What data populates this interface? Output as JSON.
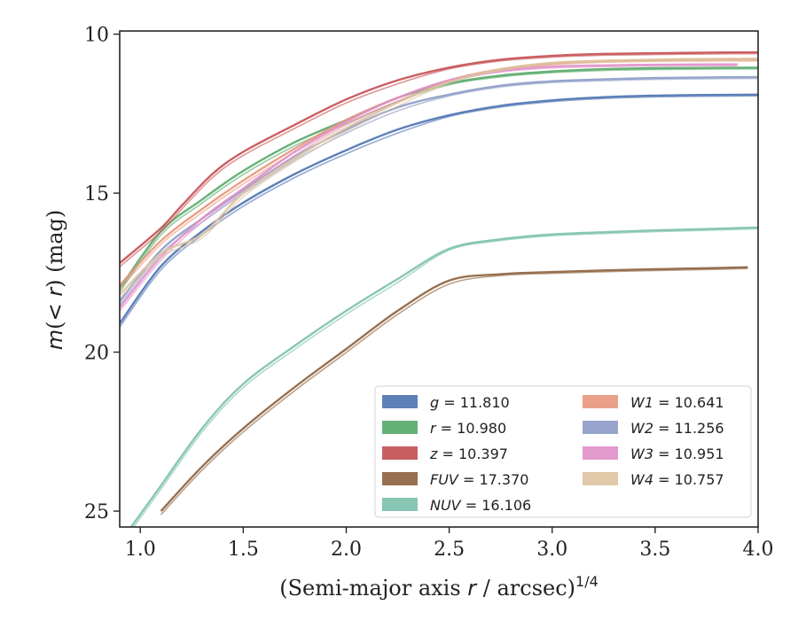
{
  "chart_data": {
    "type": "line",
    "xlabel": "(Semi-major axis r / arcsec)",
    "xlabel_parts": {
      "prefix": "(Semi-major axis ",
      "var": "r",
      "suffix": " / arcsec)",
      "sup": "1/4"
    },
    "ylabel": "m(< r) (mag)",
    "ylabel_parts": {
      "m": "m",
      "open": "(",
      "lt": "< ",
      "r": "r",
      "close": ")",
      "unit": " (mag)"
    },
    "xlim": [
      0.9,
      4.0
    ],
    "ylim": [
      25.5,
      9.9
    ],
    "y_inverted": true,
    "xticks": [
      1.0,
      1.5,
      2.0,
      2.5,
      3.0,
      3.5,
      4.0
    ],
    "xtick_labels": [
      "1.0",
      "1.5",
      "2.0",
      "2.5",
      "3.0",
      "3.5",
      "4.0"
    ],
    "yticks": [
      10,
      15,
      20,
      25
    ],
    "ytick_labels": [
      "10",
      "15",
      "20",
      "25"
    ],
    "grid": false,
    "legend_position": "lower-right",
    "series": [
      {
        "name": "g",
        "label": "g = 11.810",
        "color": "#4C72B0",
        "points": [
          [
            0.9,
            19.1
          ],
          [
            1.1,
            17.3
          ],
          [
            1.3,
            16.2
          ],
          [
            1.5,
            15.3
          ],
          [
            1.75,
            14.4
          ],
          [
            2.0,
            13.65
          ],
          [
            2.25,
            13.0
          ],
          [
            2.5,
            12.55
          ],
          [
            2.75,
            12.25
          ],
          [
            3.0,
            12.08
          ],
          [
            3.25,
            11.98
          ],
          [
            3.5,
            11.93
          ],
          [
            3.75,
            11.91
          ],
          [
            4.0,
            11.9
          ]
        ]
      },
      {
        "name": "r",
        "label": "r = 10.980",
        "color": "#55A868",
        "points": [
          [
            0.9,
            18.0
          ],
          [
            1.1,
            16.2
          ],
          [
            1.3,
            15.2
          ],
          [
            1.5,
            14.3
          ],
          [
            1.75,
            13.4
          ],
          [
            2.0,
            12.7
          ],
          [
            2.25,
            12.0
          ],
          [
            2.5,
            11.55
          ],
          [
            2.75,
            11.3
          ],
          [
            3.0,
            11.17
          ],
          [
            3.25,
            11.1
          ],
          [
            3.5,
            11.07
          ],
          [
            3.75,
            11.06
          ],
          [
            4.0,
            11.05
          ]
        ]
      },
      {
        "name": "z",
        "label": "z = 10.397",
        "color": "#C44E52",
        "points": [
          [
            0.9,
            17.2
          ],
          [
            1.1,
            16.1
          ],
          [
            1.2,
            15.4
          ],
          [
            1.35,
            14.4
          ],
          [
            1.5,
            13.7
          ],
          [
            1.75,
            12.85
          ],
          [
            2.0,
            12.05
          ],
          [
            2.25,
            11.45
          ],
          [
            2.5,
            11.05
          ],
          [
            2.75,
            10.8
          ],
          [
            3.0,
            10.68
          ],
          [
            3.25,
            10.62
          ],
          [
            3.5,
            10.6
          ],
          [
            3.75,
            10.58
          ],
          [
            4.0,
            10.57
          ]
        ]
      },
      {
        "name": "FUV",
        "label": "FUV = 17.370",
        "color": "#8C613C",
        "points": [
          [
            1.1,
            25.0
          ],
          [
            1.3,
            23.6
          ],
          [
            1.5,
            22.4
          ],
          [
            1.75,
            21.1
          ],
          [
            2.0,
            19.9
          ],
          [
            2.25,
            18.7
          ],
          [
            2.5,
            17.75
          ],
          [
            2.75,
            17.55
          ],
          [
            3.0,
            17.48
          ],
          [
            3.25,
            17.43
          ],
          [
            3.5,
            17.39
          ],
          [
            3.75,
            17.36
          ],
          [
            3.95,
            17.33
          ]
        ]
      },
      {
        "name": "NUV",
        "label": "NUV = 16.106",
        "color": "#7BC0AC",
        "points": [
          [
            0.9,
            26.0
          ],
          [
            1.1,
            24.2
          ],
          [
            1.3,
            22.4
          ],
          [
            1.5,
            21.0
          ],
          [
            1.75,
            19.8
          ],
          [
            2.0,
            18.7
          ],
          [
            2.25,
            17.7
          ],
          [
            2.5,
            16.75
          ],
          [
            2.75,
            16.45
          ],
          [
            3.0,
            16.3
          ],
          [
            3.25,
            16.23
          ],
          [
            3.5,
            16.17
          ],
          [
            3.75,
            16.13
          ],
          [
            4.0,
            16.08
          ]
        ]
      },
      {
        "name": "W1",
        "label": "W1 = 10.641",
        "color": "#E8967A",
        "points": [
          [
            0.9,
            17.9
          ],
          [
            1.1,
            16.5
          ],
          [
            1.3,
            15.5
          ],
          [
            1.5,
            14.6
          ],
          [
            1.75,
            13.6
          ],
          [
            2.0,
            12.7
          ],
          [
            2.25,
            12.0
          ],
          [
            2.5,
            11.45
          ],
          [
            2.75,
            11.1
          ],
          [
            3.0,
            10.92
          ],
          [
            3.25,
            10.84
          ],
          [
            3.5,
            10.81
          ],
          [
            3.75,
            10.8
          ],
          [
            4.0,
            10.8
          ]
        ]
      },
      {
        "name": "W2",
        "label": "W2 = 11.256",
        "color": "#8C9BC6",
        "points": [
          [
            0.9,
            18.4
          ],
          [
            1.1,
            16.8
          ],
          [
            1.3,
            15.8
          ],
          [
            1.5,
            14.9
          ],
          [
            1.75,
            13.85
          ],
          [
            2.0,
            13.0
          ],
          [
            2.25,
            12.3
          ],
          [
            2.5,
            11.9
          ],
          [
            2.75,
            11.62
          ],
          [
            3.0,
            11.48
          ],
          [
            3.25,
            11.42
          ],
          [
            3.5,
            11.38
          ],
          [
            3.75,
            11.36
          ],
          [
            4.0,
            11.35
          ]
        ]
      },
      {
        "name": "W3",
        "label": "W3 = 10.951",
        "color": "#E08FC9",
        "points": [
          [
            0.9,
            18.6
          ],
          [
            1.1,
            17.0
          ],
          [
            1.3,
            15.8
          ],
          [
            1.5,
            14.85
          ],
          [
            1.75,
            13.7
          ],
          [
            2.0,
            12.75
          ],
          [
            2.25,
            12.0
          ],
          [
            2.5,
            11.45
          ],
          [
            2.75,
            11.15
          ],
          [
            3.0,
            11.02
          ],
          [
            3.25,
            10.98
          ],
          [
            3.5,
            10.96
          ],
          [
            3.75,
            10.95
          ],
          [
            3.9,
            10.95
          ]
        ]
      },
      {
        "name": "W4",
        "label": "W4 = 10.757",
        "color": "#DDC29E",
        "points": [
          [
            0.9,
            18.2
          ],
          [
            1.1,
            16.9
          ],
          [
            1.3,
            16.3
          ],
          [
            1.5,
            15.0
          ],
          [
            1.75,
            13.9
          ],
          [
            2.0,
            12.95
          ],
          [
            2.25,
            12.15
          ],
          [
            2.5,
            11.5
          ],
          [
            2.75,
            11.1
          ],
          [
            3.0,
            10.9
          ],
          [
            3.25,
            10.84
          ],
          [
            3.5,
            10.8
          ],
          [
            3.75,
            10.78
          ],
          [
            4.0,
            10.77
          ]
        ]
      }
    ]
  }
}
